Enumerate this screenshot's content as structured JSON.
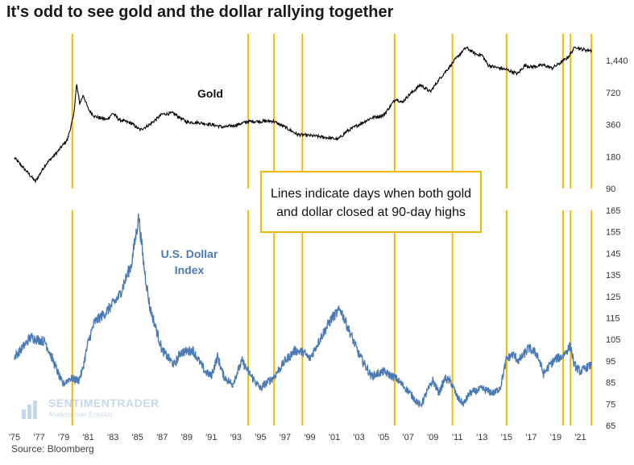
{
  "title": "It's odd to see gold and the dollar rallying together",
  "source": "Source: Bloomberg",
  "annotation": {
    "line1": "Lines indicate days when both gold",
    "line2": "and dollar closed at 90-day highs"
  },
  "watermark": {
    "name": "SENTIMENTRADER",
    "tagline": "Analysis over Emotion"
  },
  "colors": {
    "gold_line": "#000000",
    "usd_line": "#4a7ab5",
    "highlight": "#f2b705"
  },
  "chart_data": [
    {
      "type": "line",
      "name": "Gold",
      "label": "Gold",
      "scale": "log",
      "yticks": [
        90,
        180,
        360,
        720,
        1440
      ],
      "ytick_labels": [
        "90",
        "180",
        "360",
        "720",
        "1,440"
      ],
      "x": [
        1975.0,
        1976.0,
        1976.7,
        1977.5,
        1978.5,
        1979.3,
        1979.8,
        1980.05,
        1980.3,
        1980.6,
        1981.0,
        1981.5,
        1982.5,
        1983.0,
        1983.5,
        1984.5,
        1985.2,
        1986.0,
        1987.0,
        1987.9,
        1989.0,
        1990.0,
        1991.0,
        1992.0,
        1993.0,
        1994.0,
        1995.0,
        1996.0,
        1997.0,
        1998.0,
        1999.5,
        2000.5,
        2001.3,
        2002.0,
        2003.0,
        2004.0,
        2005.0,
        2006.0,
        2006.5,
        2007.0,
        2008.0,
        2008.8,
        2009.5,
        2010.0,
        2011.0,
        2011.7,
        2012.5,
        2013.0,
        2013.5,
        2014.0,
        2015.0,
        2015.9,
        2016.5,
        2017.0,
        2018.0,
        2018.7,
        2019.5,
        2020.0,
        2020.6,
        2021.0,
        2021.5,
        2021.9
      ],
      "y": [
        175,
        130,
        105,
        150,
        200,
        260,
        430,
        850,
        570,
        680,
        500,
        430,
        400,
        460,
        400,
        370,
        320,
        360,
        450,
        460,
        380,
        375,
        360,
        340,
        355,
        385,
        385,
        388,
        340,
        290,
        280,
        270,
        262,
        310,
        360,
        415,
        440,
        630,
        580,
        670,
        850,
        730,
        950,
        1120,
        1550,
        1900,
        1650,
        1620,
        1300,
        1250,
        1180,
        1080,
        1300,
        1250,
        1300,
        1220,
        1400,
        1550,
        1950,
        1850,
        1800,
        1790
      ]
    },
    {
      "type": "line",
      "name": "U.S. Dollar Index",
      "label_line1": "U.S. Dollar",
      "label_line2": "Index",
      "yticks": [
        65,
        75,
        85,
        95,
        105,
        115,
        125,
        135,
        145,
        155,
        165
      ],
      "x": [
        1975.0,
        1975.5,
        1976.3,
        1977.5,
        1978.5,
        1978.9,
        1979.5,
        1980.2,
        1980.5,
        1981.0,
        1981.5,
        1982.5,
        1983.5,
        1984.5,
        1985.1,
        1985.5,
        1986.0,
        1987.0,
        1988.0,
        1988.5,
        1989.5,
        1990.5,
        1991.0,
        1991.5,
        1992.0,
        1992.7,
        1993.5,
        1994.0,
        1995.0,
        1995.3,
        1996.0,
        1997.0,
        1997.8,
        1998.5,
        1999.0,
        2000.0,
        2000.8,
        2001.5,
        2002.0,
        2003.0,
        2004.0,
        2005.0,
        2006.0,
        2007.0,
        2008.0,
        2008.4,
        2009.0,
        2009.5,
        2010.0,
        2010.5,
        2011.0,
        2011.5,
        2012.0,
        2013.0,
        2014.0,
        2014.5,
        2015.0,
        2015.5,
        2016.0,
        2016.8,
        2017.5,
        2018.0,
        2018.5,
        2019.0,
        2019.5,
        2020.2,
        2020.5,
        2021.0,
        2021.5,
        2021.9
      ],
      "y": [
        97,
        100,
        106,
        104,
        90,
        84,
        87,
        86,
        90,
        104,
        113,
        118,
        125,
        140,
        162,
        140,
        120,
        100,
        93,
        99,
        100,
        90,
        88,
        97,
        88,
        84,
        95,
        90,
        82,
        84,
        87,
        95,
        100,
        99,
        96,
        107,
        115,
        119,
        112,
        98,
        88,
        90,
        87,
        81,
        74,
        79,
        86,
        80,
        87,
        85,
        78,
        75,
        80,
        82,
        80,
        83,
        96,
        98,
        95,
        101,
        98,
        89,
        93,
        96,
        97,
        102,
        93,
        90,
        92,
        93
      ]
    }
  ],
  "x_ticks": [
    "'75",
    "'77",
    "'79",
    "'81",
    "'83",
    "'85",
    "'87",
    "'89",
    "'91",
    "'93",
    "'95",
    "'97",
    "'99",
    "'01",
    "'03",
    "'05",
    "'07",
    "'09",
    "'11",
    "'13",
    "'15",
    "'17",
    "'19",
    "'21"
  ],
  "x_tick_years": [
    1975,
    1977,
    1979,
    1981,
    1983,
    1985,
    1987,
    1989,
    1991,
    1993,
    1995,
    1997,
    1999,
    2001,
    2003,
    2005,
    2007,
    2009,
    2011,
    2013,
    2015,
    2017,
    2019,
    2021
  ],
  "signal_years": [
    1979.7,
    1994.0,
    1996.1,
    1998.4,
    2005.9,
    2010.6,
    2015.0,
    2019.6,
    2020.2,
    2021.9
  ]
}
